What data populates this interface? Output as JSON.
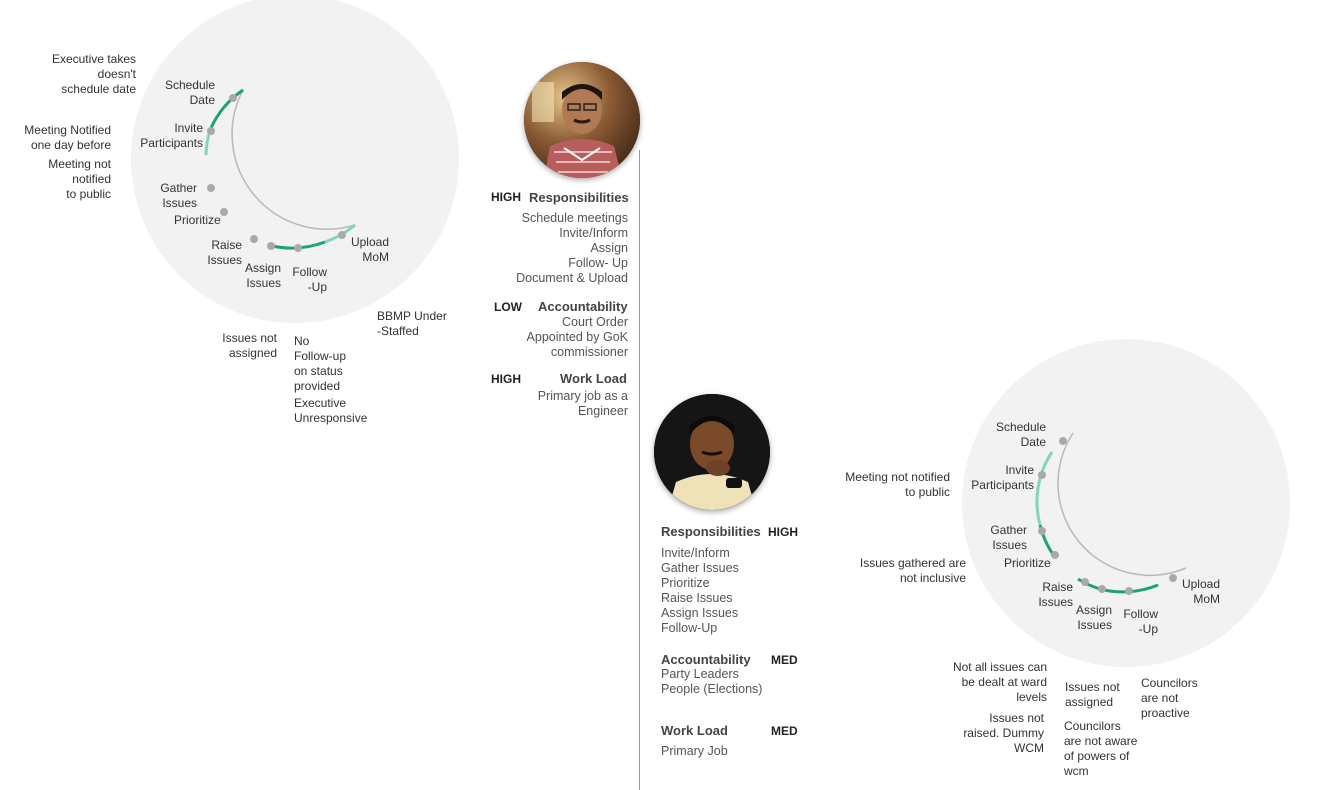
{
  "left_diagram": {
    "stages": {
      "schedule_date": "Schedule\nDate",
      "invite": "Invite\nParticipants",
      "gather": "Gather\nIssues",
      "prioritize": "Prioritize",
      "raise": "Raise\nIssues",
      "assign": "Assign\nIssues",
      "follow": "Follow\n-Up",
      "upload": "Upload\nMoM"
    },
    "issues": {
      "exec_date": "Executive takes\ndoesn't\nschedule date",
      "notified_one_day": "Meeting Notified\none day before",
      "not_notified": "Meeting not\nnotified\nto public",
      "not_assigned": "Issues not\nassigned",
      "no_followup": "No\nFollow-up\non status\nprovided",
      "exec_unresponsive": "Executive\nUnresponsive",
      "bbmp": "BBMP Under\n-Staffed"
    }
  },
  "engineer": {
    "avatar_name": "engineer-photo",
    "responsibilities": {
      "level": "HIGH",
      "title": "Responsibilities",
      "items": [
        "Schedule meetings",
        "Invite/Inform",
        "Assign",
        "Follow- Up",
        "Document & Upload"
      ]
    },
    "accountability": {
      "level": "LOW",
      "title": "Accountability",
      "items": [
        "Court Order",
        "Appointed by GoK",
        "commissioner"
      ]
    },
    "workload": {
      "level": "HIGH",
      "title": "Work Load",
      "items": [
        "Primary job as a",
        "Engineer"
      ]
    }
  },
  "councillor": {
    "avatar_name": "councillor-photo",
    "responsibilities": {
      "level": "HIGH",
      "title": "Responsibilities",
      "items": [
        "Invite/Inform",
        "Gather Issues",
        "Prioritize",
        "Raise Issues",
        "Assign Issues",
        "Follow-Up"
      ]
    },
    "accountability": {
      "level": "MED",
      "title": "Accountability",
      "items": [
        "Party Leaders",
        "People (Elections)"
      ]
    },
    "workload": {
      "level": "MED",
      "title": "Work Load",
      "items": [
        "Primary Job"
      ]
    }
  },
  "right_diagram": {
    "stages": {
      "schedule_date": "Schedule\nDate",
      "invite": "Invite\nParticipants",
      "gather": "Gather\nIssues",
      "prioritize": "Prioritize",
      "raise": "Raise\nIssues",
      "assign": "Assign\nIssues",
      "follow": "Follow\n-Up",
      "upload": "Upload\nMoM"
    },
    "issues": {
      "not_notified": "Meeting not notified\nto public",
      "not_inclusive": "Issues gathered are\nnot inclusive",
      "ward_levels": "Not all issues can\nbe dealt at ward\nlevels",
      "not_raised": "Issues not\nraised. Dummy\nWCM",
      "not_assigned": "Issues not\nassigned",
      "not_aware": "Councilors\nare not aware\nof powers of\nwcm",
      "not_proactive": "Councilors\nare not\nproactive"
    }
  },
  "colors": {
    "bubble": "#f2f2f2",
    "accent_dark": "#1aa37a",
    "accent_light": "#7fd6bd",
    "track": "#b8b8b8",
    "dot": "#a9a9a9"
  }
}
